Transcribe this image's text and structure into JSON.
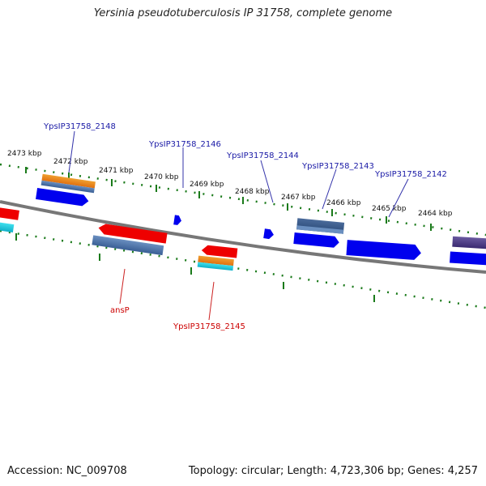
{
  "title": "Yersinia pseudotuberculosis IP 31758, complete genome",
  "footer": {
    "accession": "Accession: NC_009708",
    "topology": "Topology: circular; Length: 4,723,306 bp; Genes: 4,257"
  },
  "ruler": {
    "labels": [
      "2473 kbp",
      "2472 kbp",
      "2471 kbp",
      "2470 kbp",
      "2469 kbp",
      "2468 kbp",
      "2467 kbp",
      "2466 kbp",
      "2465 kbp",
      "2464 kbp"
    ]
  },
  "genes_top": [
    "YpsIP31758_2148",
    "YpsIP31758_2146",
    "YpsIP31758_2144",
    "YpsIP31758_2143",
    "YpsIP31758_2142"
  ],
  "genes_bottom": [
    "ansP",
    "YpsIP31758_2145"
  ],
  "colors": {
    "forward_cds": "#0000ee",
    "reverse_cds": "#ee0000",
    "top_label": "#1a1aa6",
    "bottom_label": "#cc0000",
    "backbone": "#777777",
    "tick": "#1a7a1a"
  }
}
